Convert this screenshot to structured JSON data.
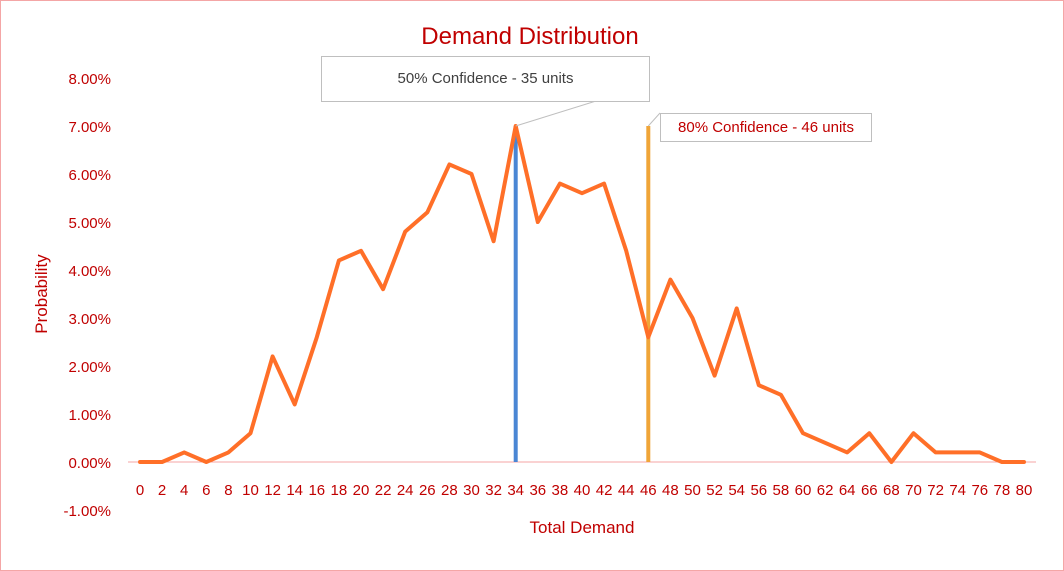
{
  "chart_data": {
    "type": "line",
    "title": "Demand Distribution",
    "xlabel": "Total Demand",
    "ylabel": "Probability",
    "ylim": [
      -0.01,
      0.085
    ],
    "y_ticks": [
      -0.01,
      0,
      0.01,
      0.02,
      0.03,
      0.04,
      0.05,
      0.06,
      0.07,
      0.08
    ],
    "y_tick_labels": [
      "-1.00%",
      "0.00%",
      "1.00%",
      "2.00%",
      "3.00%",
      "4.00%",
      "5.00%",
      "6.00%",
      "7.00%",
      "8.00%"
    ],
    "categories": [
      "0",
      "2",
      "4",
      "6",
      "8",
      "10",
      "12",
      "14",
      "16",
      "18",
      "20",
      "22",
      "24",
      "26",
      "28",
      "30",
      "32",
      "34",
      "36",
      "38",
      "40",
      "42",
      "44",
      "46",
      "48",
      "50",
      "52",
      "54",
      "56",
      "58",
      "60",
      "62",
      "64",
      "66",
      "68",
      "70",
      "72",
      "74",
      "76",
      "78",
      "80"
    ],
    "series": [
      {
        "color": "#ff6f28",
        "values": [
          0.0,
          0.0,
          0.002,
          0.0,
          0.002,
          0.006,
          0.022,
          0.012,
          0.026,
          0.042,
          0.044,
          0.036,
          0.048,
          0.052,
          0.062,
          0.06,
          0.046,
          0.07,
          0.05,
          0.058,
          0.056,
          0.058,
          0.044,
          0.026,
          0.038,
          0.03,
          0.018,
          0.032,
          0.016,
          0.014,
          0.006,
          0.004,
          0.002,
          0.006,
          0.0,
          0.006,
          0.002,
          0.002,
          0.002,
          0.0,
          0.0
        ]
      }
    ],
    "markers": [
      {
        "category": "34",
        "value": 0.07,
        "color": "#4a86d4",
        "label": "50% Confidence - 35 units"
      },
      {
        "category": "46",
        "value": 0.07,
        "color": "#f0a538",
        "label": "80% Confidence - 46 units"
      }
    ],
    "colors": {
      "axis_text": "#c00000",
      "zero_line": "#f4a6a6",
      "frame": "#f4a6a6"
    },
    "grid": false,
    "legend": "none"
  }
}
